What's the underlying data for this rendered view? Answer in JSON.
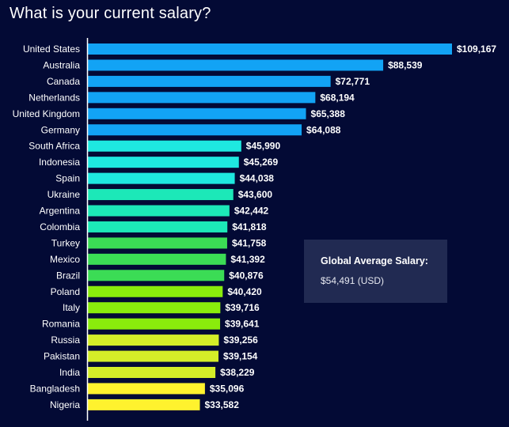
{
  "chart_data": {
    "type": "bar",
    "orientation": "horizontal",
    "title": "What is your current salary?",
    "xlabel": "",
    "ylabel": "",
    "grid": false,
    "currency_prefix": "$",
    "categories": [
      "United States",
      "Australia",
      "Canada",
      "Netherlands",
      "United Kingdom",
      "Germany",
      "South Africa",
      "Indonesia",
      "Spain",
      "Ukraine",
      "Argentina",
      "Colombia",
      "Turkey",
      "Mexico",
      "Brazil",
      "Poland",
      "Italy",
      "Romania",
      "Russia",
      "Pakistan",
      "India",
      "Bangladesh",
      "Nigeria"
    ],
    "values": [
      109167,
      88539,
      72771,
      68194,
      65388,
      64088,
      45990,
      45269,
      44038,
      43600,
      42442,
      41818,
      41758,
      41392,
      40876,
      40420,
      39716,
      39641,
      39256,
      39154,
      38229,
      35096,
      33582
    ],
    "value_labels": [
      "$109,167",
      "$88,539",
      "$72,771",
      "$68,194",
      "$65,388",
      "$64,088",
      "$45,990",
      "$45,269",
      "$44,038",
      "$43,600",
      "$42,442",
      "$41,818",
      "$41,758",
      "$41,392",
      "$40,876",
      "$40,420",
      "$39,716",
      "$39,641",
      "$39,256",
      "$39,154",
      "$38,229",
      "$35,096",
      "$33,582"
    ],
    "colors": [
      "#12a3f5",
      "#12a3f5",
      "#12a3f5",
      "#12a3f5",
      "#12a3f5",
      "#12a3f5",
      "#1ee8e0",
      "#1ee8e0",
      "#1ee8e0",
      "#1ce8b8",
      "#1ce8b8",
      "#1ce8b8",
      "#3bdc55",
      "#3bdc55",
      "#3bdc55",
      "#8aec0c",
      "#8aec0c",
      "#8aec0c",
      "#d4ee28",
      "#d4ee28",
      "#d4ee28",
      "#fff22e",
      "#fff22e"
    ],
    "xlim": [
      0,
      109167
    ]
  },
  "annotation": {
    "title": "Global Average Salary:",
    "value": "$54,491 (USD)"
  },
  "colors": {
    "background": "#030a35",
    "axis": "#ffffff",
    "info_box": "#212a52"
  }
}
